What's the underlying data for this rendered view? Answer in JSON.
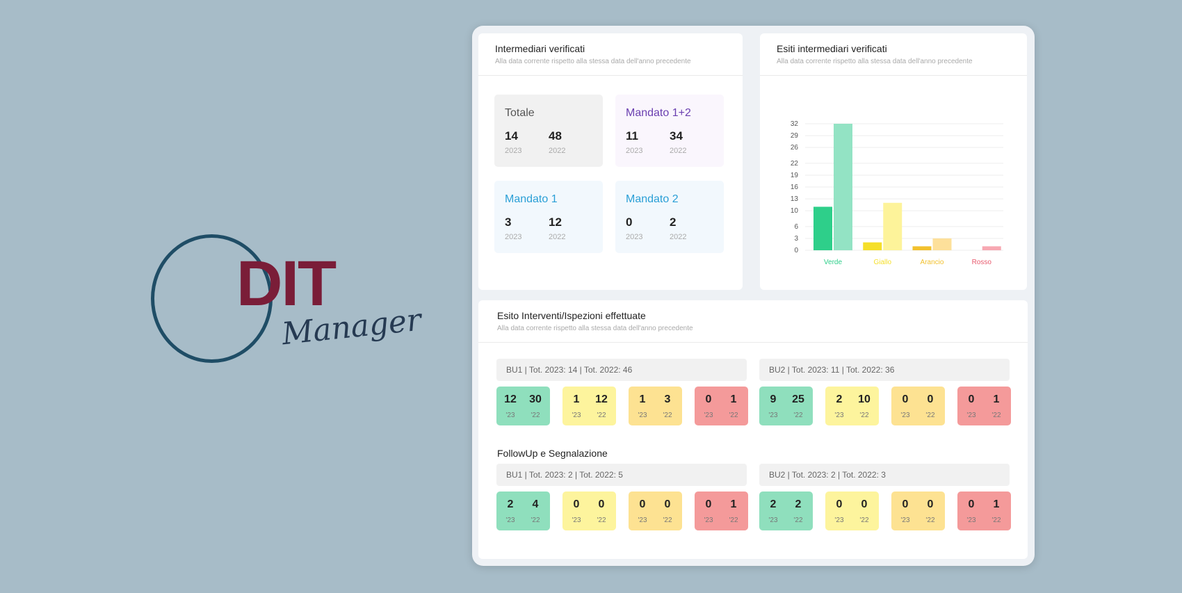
{
  "logo": {
    "text": "DIT",
    "script": "Manager"
  },
  "verified": {
    "title": "Intermediari verificati",
    "subtitle": "Alla data corrente rispetto alla stessa data dell'anno precedente",
    "boxes": [
      {
        "label": "Totale",
        "v2023": "14",
        "v2022": "48",
        "y1": "2023",
        "y2": "2022",
        "color": "#555555"
      },
      {
        "label": "Mandato 1+2",
        "v2023": "11",
        "v2022": "34",
        "y1": "2023",
        "y2": "2022",
        "color": "#6a3fb0"
      },
      {
        "label": "Mandato 1",
        "v2023": "3",
        "v2022": "12",
        "y1": "2023",
        "y2": "2022",
        "color": "#2a9fd6"
      },
      {
        "label": "Mandato 2",
        "v2023": "0",
        "v2022": "2",
        "y1": "2023",
        "y2": "2022",
        "color": "#2a9fd6"
      }
    ]
  },
  "esiti": {
    "title": "Esiti intermediari verificati",
    "subtitle": "Alla data corrente rispetto alla stessa data dell'anno precedente"
  },
  "chart_data": {
    "type": "bar",
    "categories": [
      "Verde",
      "Giallo",
      "Arancio",
      "Rosso"
    ],
    "series": [
      {
        "values": [
          11,
          2,
          1,
          0
        ],
        "colors": [
          "#2ecf8a",
          "#f5df2a",
          "#f2c12e",
          "#f07b8a"
        ]
      },
      {
        "values": [
          32,
          12,
          3,
          1
        ],
        "colors": [
          "#93e3c4",
          "#fdf39a",
          "#fde09a",
          "#f7a8b2"
        ]
      }
    ],
    "yticks": [
      "0",
      "3",
      "6",
      "10",
      "13",
      "16",
      "19",
      "22",
      "26",
      "29",
      "32"
    ],
    "ylim": [
      0,
      32
    ],
    "grid": true,
    "label_colors": [
      "#2ecf8a",
      "#f5df2a",
      "#f2c12e",
      "#e85a6e"
    ]
  },
  "interventi": {
    "title": "Esito Interventi/Ispezioni effettuate",
    "subtitle": "Alla data corrente rispetto alla stessa data dell'anno precedente",
    "bu1_header": "BU1 | Tot. 2023: 14 | Tot. 2022: 46",
    "bu2_header": "BU2 | Tot. 2023: 11 | Tot. 2022: 36",
    "bu1": [
      [
        "12",
        "30"
      ],
      [
        "1",
        "12"
      ],
      [
        "1",
        "3"
      ],
      [
        "0",
        "1"
      ]
    ],
    "bu2": [
      [
        "9",
        "25"
      ],
      [
        "2",
        "10"
      ],
      [
        "0",
        "0"
      ],
      [
        "0",
        "1"
      ]
    ],
    "year_a": "'23",
    "year_b": "'22"
  },
  "followup": {
    "title": "FollowUp e Segnalazione",
    "bu1_header": "BU1 | Tot. 2023: 2 | Tot. 2022: 5",
    "bu2_header": "BU2 | Tot. 2023: 2 | Tot. 2022: 3",
    "bu1": [
      [
        "2",
        "4"
      ],
      [
        "0",
        "0"
      ],
      [
        "0",
        "0"
      ],
      [
        "0",
        "1"
      ]
    ],
    "bu2": [
      [
        "2",
        "2"
      ],
      [
        "0",
        "0"
      ],
      [
        "0",
        "0"
      ],
      [
        "0",
        "1"
      ]
    ]
  }
}
